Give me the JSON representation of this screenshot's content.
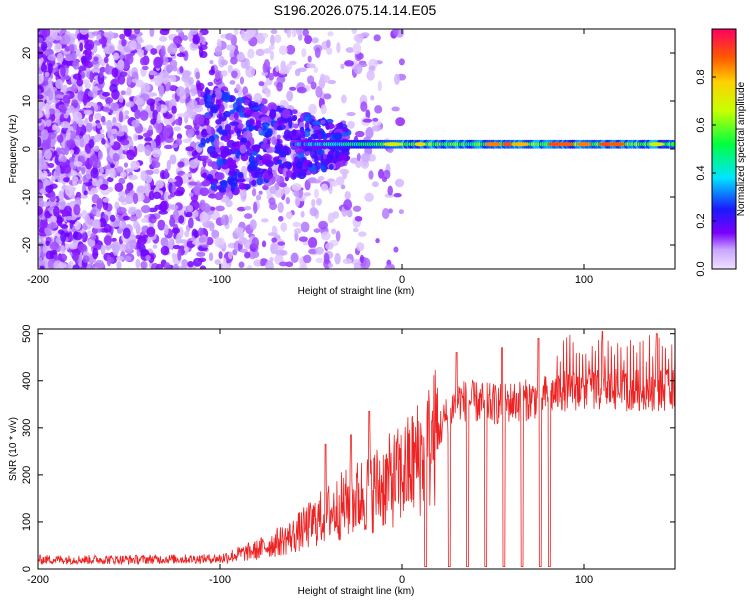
{
  "title": "S196.2026.075.14.14.E05",
  "chart_data": [
    {
      "type": "heatmap",
      "title": "S196.2026.075.14.14.E05",
      "xlabel": "Height of straight line (km)",
      "ylabel": "Frequency (Hz)",
      "xlim": [
        -200,
        150
      ],
      "ylim": [
        -25,
        25
      ],
      "x_ticks": [
        -200,
        -100,
        0,
        100
      ],
      "y_ticks": [
        -20,
        -10,
        0,
        10,
        20
      ],
      "colorbar": {
        "label": "Normalized spectral amplitude",
        "range": [
          0,
          1
        ],
        "ticks": [
          0.0,
          0.2,
          0.4,
          0.6,
          0.8
        ],
        "stops": [
          {
            "v": 0.0,
            "color": "#f0e0ff"
          },
          {
            "v": 0.08,
            "color": "#c9a6ff"
          },
          {
            "v": 0.15,
            "color": "#7b00ff"
          },
          {
            "v": 0.25,
            "color": "#1a1aff"
          },
          {
            "v": 0.38,
            "color": "#00e5ff"
          },
          {
            "v": 0.52,
            "color": "#00ff40"
          },
          {
            "v": 0.66,
            "color": "#c8ff00"
          },
          {
            "v": 0.78,
            "color": "#ffd000"
          },
          {
            "v": 0.88,
            "color": "#ff5a00"
          },
          {
            "v": 1.0,
            "color": "#ff0060"
          }
        ]
      },
      "description_of_signal": {
        "noise_region_km": [
          -200,
          -100
        ],
        "band_center_hz": 1,
        "band_start_km": -60,
        "peak_amplitude": 0.9
      }
    },
    {
      "type": "line",
      "xlabel": "Height of straight line (km)",
      "ylabel": "SNR (10 * v/v)",
      "xlim": [
        -200,
        150
      ],
      "ylim": [
        0,
        510
      ],
      "x_ticks": [
        -200,
        -100,
        0,
        100
      ],
      "y_ticks": [
        0,
        100,
        200,
        300,
        400,
        500
      ],
      "line_color": "#ee2222",
      "series_envelope": [
        {
          "x": -200,
          "y": 20
        },
        {
          "x": -150,
          "y": 20
        },
        {
          "x": -100,
          "y": 22
        },
        {
          "x": -80,
          "y": 40
        },
        {
          "x": -60,
          "y": 70
        },
        {
          "x": -40,
          "y": 120
        },
        {
          "x": -20,
          "y": 160
        },
        {
          "x": 0,
          "y": 200
        },
        {
          "x": 15,
          "y": 260
        },
        {
          "x": 30,
          "y": 360
        },
        {
          "x": 50,
          "y": 350
        },
        {
          "x": 70,
          "y": 360
        },
        {
          "x": 90,
          "y": 380
        },
        {
          "x": 120,
          "y": 380
        },
        {
          "x": 150,
          "y": 380
        }
      ],
      "dropouts_km": [
        13,
        26,
        36,
        46,
        56,
        66,
        76,
        81
      ],
      "spike_peaks": [
        {
          "x": -42,
          "y": 265
        },
        {
          "x": -28,
          "y": 285
        },
        {
          "x": -18,
          "y": 335
        },
        {
          "x": 30,
          "y": 460
        },
        {
          "x": 55,
          "y": 470
        },
        {
          "x": 75,
          "y": 490
        },
        {
          "x": 110,
          "y": 505
        },
        {
          "x": 140,
          "y": 500
        }
      ]
    }
  ]
}
